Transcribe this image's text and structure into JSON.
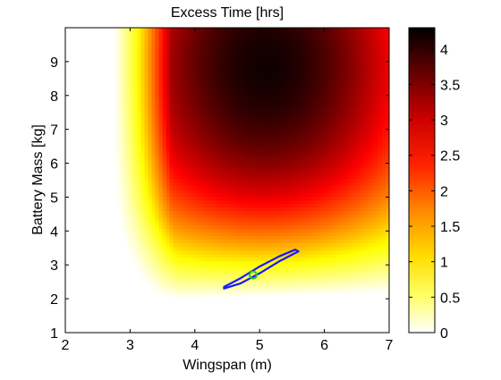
{
  "chart_data": {
    "type": "heatmap",
    "title": "Excess Time [hrs]",
    "xlabel": "Wingspan (m)",
    "ylabel": "Battery Mass [kg]",
    "xlim": [
      2,
      7
    ],
    "ylim": [
      1,
      10
    ],
    "xticks": [
      2,
      3,
      4,
      5,
      6,
      7
    ],
    "yticks": [
      1,
      2,
      3,
      4,
      5,
      6,
      7,
      8,
      9
    ],
    "colorbar": {
      "colormap": "hot (reversed)",
      "range": [
        0,
        4.3
      ],
      "ticks": [
        0,
        0.5,
        1,
        1.5,
        2,
        2.5,
        3,
        3.5,
        4
      ],
      "tick_labels": [
        "0",
        "0.5",
        "1",
        "1.5",
        "2",
        "2.5",
        "3",
        "3.5",
        "4"
      ]
    },
    "grid": false,
    "feasible_region": {
      "description": "positive excess time region, bounded below by curve",
      "boundary": [
        {
          "x": 2.8,
          "y": 10.0
        },
        {
          "x": 2.75,
          "y": 8.0
        },
        {
          "x": 2.75,
          "y": 6.0
        },
        {
          "x": 2.8,
          "y": 4.5
        },
        {
          "x": 2.95,
          "y": 3.3
        },
        {
          "x": 3.2,
          "y": 2.5
        },
        {
          "x": 3.5,
          "y": 2.05
        },
        {
          "x": 3.8,
          "y": 2.0
        },
        {
          "x": 4.5,
          "y": 2.05
        },
        {
          "x": 5.5,
          "y": 2.1
        },
        {
          "x": 7.0,
          "y": 2.2
        }
      ],
      "peak": {
        "x": 5.1,
        "y": 8.5,
        "value": 4.3
      }
    },
    "overlays": [
      {
        "name": "uncertainty contour",
        "type": "closed-curve",
        "color": "#1a1aff",
        "points": [
          [
            4.45,
            2.3
          ],
          [
            4.7,
            2.45
          ],
          [
            5.0,
            2.75
          ],
          [
            5.3,
            3.1
          ],
          [
            5.6,
            3.4
          ],
          [
            5.55,
            3.45
          ],
          [
            5.3,
            3.25
          ],
          [
            5.0,
            2.95
          ],
          [
            4.7,
            2.6
          ],
          [
            4.45,
            2.35
          ]
        ]
      },
      {
        "name": "nominal design point",
        "type": "marker",
        "color": "#22cc22",
        "x": 4.9,
        "y": 2.7
      }
    ]
  }
}
